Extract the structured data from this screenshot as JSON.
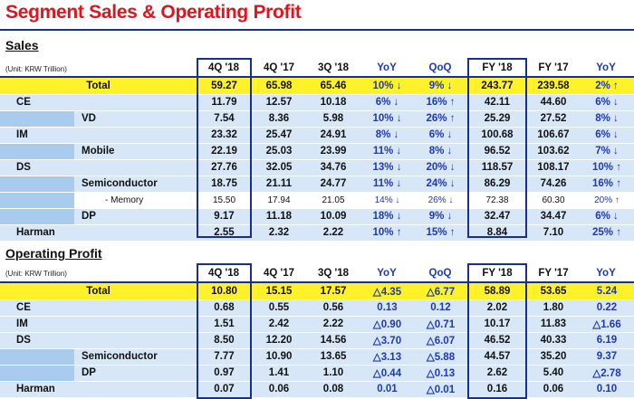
{
  "title": "Segment Sales & Operating Profit",
  "unit": "(Unit: KRW Trillion)",
  "columns": [
    "4Q '18",
    "4Q '17",
    "3Q '18",
    "YoY",
    "QoQ",
    "FY '18",
    "FY '17",
    "YoY"
  ],
  "colors": {
    "title": "#e0141e",
    "accent_blue": "#1f39b0",
    "highlight": "#fff22a",
    "row_blue": "#a9cbee",
    "row_light": "#d7e7f7"
  },
  "sales": {
    "heading": "Sales",
    "rows": [
      {
        "label": "Total",
        "vals": [
          "59.27",
          "65.98",
          "65.46",
          "10% ↓",
          "9% ↓",
          "243.77",
          "239.58",
          "2% ↑"
        ]
      },
      {
        "label": "CE",
        "vals": [
          "11.79",
          "12.57",
          "10.18",
          "6% ↓",
          "16% ↑",
          "42.11",
          "44.60",
          "6% ↓"
        ]
      },
      {
        "label": "VD",
        "vals": [
          "7.54",
          "8.36",
          "5.98",
          "10% ↓",
          "26% ↑",
          "25.29",
          "27.52",
          "8% ↓"
        ]
      },
      {
        "label": "IM",
        "vals": [
          "23.32",
          "25.47",
          "24.91",
          "8% ↓",
          "6% ↓",
          "100.68",
          "106.67",
          "6% ↓"
        ]
      },
      {
        "label": "Mobile",
        "vals": [
          "22.19",
          "25.03",
          "23.99",
          "11% ↓",
          "8% ↓",
          "96.52",
          "103.62",
          "7% ↓"
        ]
      },
      {
        "label": "DS",
        "vals": [
          "27.76",
          "32.05",
          "34.76",
          "13% ↓",
          "20% ↓",
          "118.57",
          "108.17",
          "10% ↑"
        ]
      },
      {
        "label": "Semiconductor",
        "vals": [
          "18.75",
          "21.11",
          "24.77",
          "11% ↓",
          "24% ↓",
          "86.29",
          "74.26",
          "16% ↑"
        ]
      },
      {
        "label": "- Memory",
        "vals": [
          "15.50",
          "17.94",
          "21.05",
          "14% ↓",
          "26% ↓",
          "72.38",
          "60.30",
          "20% ↑"
        ]
      },
      {
        "label": "DP",
        "vals": [
          "9.17",
          "11.18",
          "10.09",
          "18% ↓",
          "9% ↓",
          "32.47",
          "34.47",
          "6% ↓"
        ]
      },
      {
        "label": "Harman",
        "vals": [
          "2.55",
          "2.32",
          "2.22",
          "10% ↑",
          "15% ↑",
          "8.84",
          "7.10",
          "25% ↑"
        ]
      }
    ]
  },
  "op": {
    "heading": "Operating Profit",
    "rows": [
      {
        "label": "Total",
        "vals": [
          "10.80",
          "15.15",
          "17.57",
          "△4.35",
          "△6.77",
          "58.89",
          "53.65",
          "5.24"
        ]
      },
      {
        "label": "CE",
        "vals": [
          "0.68",
          "0.55",
          "0.56",
          "0.13",
          "0.12",
          "2.02",
          "1.80",
          "0.22"
        ]
      },
      {
        "label": "IM",
        "vals": [
          "1.51",
          "2.42",
          "2.22",
          "△0.90",
          "△0.71",
          "10.17",
          "11.83",
          "△1.66"
        ]
      },
      {
        "label": "DS",
        "vals": [
          "8.50",
          "12.20",
          "14.56",
          "△3.70",
          "△6.07",
          "46.52",
          "40.33",
          "6.19"
        ]
      },
      {
        "label": "Semiconductor",
        "vals": [
          "7.77",
          "10.90",
          "13.65",
          "△3.13",
          "△5.88",
          "44.57",
          "35.20",
          "9.37"
        ]
      },
      {
        "label": "DP",
        "vals": [
          "0.97",
          "1.41",
          "1.10",
          "△0.44",
          "△0.13",
          "2.62",
          "5.40",
          "△2.78"
        ]
      },
      {
        "label": "Harman",
        "vals": [
          "0.07",
          "0.06",
          "0.08",
          "0.01",
          "△0.01",
          "0.16",
          "0.06",
          "0.10"
        ]
      }
    ]
  }
}
